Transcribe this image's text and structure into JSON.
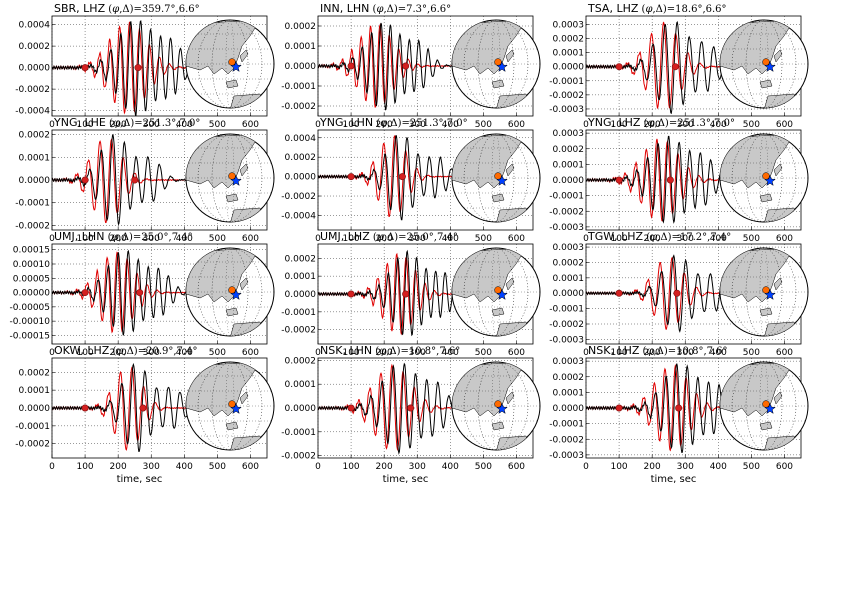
{
  "figure": {
    "x_axis_label": "time, sec",
    "colors": {
      "observed": "#000000",
      "synthetic": "#e00000",
      "marker": "#d42020",
      "station": "#ff6a00",
      "event": "#0040ff",
      "land": "#c8c8c8"
    }
  },
  "chart_data": [
    {
      "type": "line",
      "station": "SBR",
      "channel": "LHZ",
      "azimuth": "359.7°",
      "distance": "6.6°",
      "xlim": [
        0,
        650
      ],
      "xticks": [
        "0",
        "100",
        "200",
        "300",
        "400",
        "500",
        "600"
      ],
      "ylim": [
        -0.00045,
        0.00048
      ],
      "yticks": [
        "0.0004",
        "0.0002",
        "0.0000",
        "-0.0002",
        "-0.0004"
      ],
      "ytick_values": [
        0.0004,
        0.0002,
        0,
        -0.0002,
        -0.0004
      ],
      "amp": 0.00045,
      "center": 255,
      "markers": [
        100,
        260
      ]
    },
    {
      "type": "line",
      "station": "INN",
      "channel": "LHN",
      "azimuth": "7.3°",
      "distance": "6.6°",
      "xlim": [
        0,
        650
      ],
      "xticks": [
        "0",
        "100",
        "200",
        "300",
        "400",
        "500",
        "600"
      ],
      "ylim": [
        -0.00025,
        0.00025
      ],
      "yticks": [
        "0.0002",
        "0.0001",
        "0.0000",
        "-0.0001",
        "-0.0002"
      ],
      "ytick_values": [
        0.0002,
        0.0001,
        0,
        -0.0001,
        -0.0002
      ],
      "amp": 0.00022,
      "center": 200,
      "markers": [
        100,
        265
      ]
    },
    {
      "type": "line",
      "station": "TSA",
      "channel": "LHZ",
      "azimuth": "18.6°",
      "distance": "6.6°",
      "xlim": [
        0,
        650
      ],
      "xticks": [
        "0",
        "100",
        "200",
        "300",
        "400",
        "500",
        "600"
      ],
      "ylim": [
        -0.00035,
        0.00036
      ],
      "yticks": [
        "0.0003",
        "0.0002",
        "0.0001",
        "0.0000",
        "-0.0001",
        "-0.0002",
        "-0.0003"
      ],
      "ytick_values": [
        0.0003,
        0.0002,
        0.0001,
        0,
        -0.0001,
        -0.0002,
        -0.0003
      ],
      "amp": 0.00033,
      "center": 260,
      "markers": [
        100,
        270
      ]
    },
    {
      "type": "line",
      "station": "YNG",
      "channel": "LHE",
      "azimuth": "251.3°",
      "distance": "7.0°",
      "xlim": [
        0,
        650
      ],
      "xticks": [
        "0",
        "100",
        "200",
        "300",
        "400",
        "500",
        "600"
      ],
      "ylim": [
        -0.00022,
        0.00022
      ],
      "yticks": [
        "0.0002",
        "0.0001",
        "0.0000",
        "-0.0001",
        "-0.0002"
      ],
      "ytick_values": [
        0.0002,
        0.0001,
        0,
        -0.0001,
        -0.0002
      ],
      "amp": 0.0002,
      "center": 190,
      "markers": [
        100,
        250
      ]
    },
    {
      "type": "line",
      "station": "YNG",
      "channel": "LHN",
      "azimuth": "251.3°",
      "distance": "7.0°",
      "xlim": [
        0,
        650
      ],
      "xticks": [
        "0",
        "100",
        "200",
        "300",
        "400",
        "500",
        "600"
      ],
      "ylim": [
        -0.00055,
        0.00048
      ],
      "yticks": [
        "0.0004",
        "0.0002",
        "0.0000",
        "-0.0002",
        "-0.0004"
      ],
      "ytick_values": [
        0.0004,
        0.0002,
        0,
        -0.0002,
        -0.0004
      ],
      "amp": 0.00045,
      "center": 250,
      "markers": [
        100,
        255
      ]
    },
    {
      "type": "line",
      "station": "YNG",
      "channel": "LHZ",
      "azimuth": "251.3°",
      "distance": "7.0°",
      "xlim": [
        0,
        650
      ],
      "xticks": [
        "0",
        "100",
        "200",
        "300",
        "400",
        "500",
        "600"
      ],
      "ylim": [
        -0.00032,
        0.00032
      ],
      "yticks": [
        "0.0003",
        "0.0002",
        "0.0001",
        "0.0000",
        "-0.0001",
        "-0.0002",
        "-0.0003"
      ],
      "ytick_values": [
        0.0003,
        0.0002,
        0.0001,
        0,
        -0.0001,
        -0.0002,
        -0.0003
      ],
      "amp": 0.00028,
      "center": 250,
      "markers": [
        100,
        255
      ]
    },
    {
      "type": "line",
      "station": "UMJ",
      "channel": "LHN",
      "azimuth": "25.0°",
      "distance": "7.4°",
      "xlim": [
        0,
        650
      ],
      "xticks": [
        "0",
        "100",
        "200",
        "300",
        "400",
        "500",
        "600"
      ],
      "ylim": [
        -0.00018,
        0.00017
      ],
      "yticks": [
        "0.00015",
        "0.00010",
        "0.00005",
        "0.00000",
        "-0.00005",
        "-0.00010",
        "-0.00015"
      ],
      "ytick_values": [
        0.00015,
        0.0001,
        5e-05,
        0,
        -5e-05,
        -0.0001,
        -0.00015
      ],
      "amp": 0.00015,
      "center": 220,
      "markers": [
        100,
        265
      ]
    },
    {
      "type": "line",
      "station": "UMJ",
      "channel": "LHZ",
      "azimuth": "25.0°",
      "distance": "7.4°",
      "xlim": [
        0,
        650
      ],
      "xticks": [
        "0",
        "100",
        "200",
        "300",
        "400",
        "500",
        "600"
      ],
      "ylim": [
        -0.00028,
        0.00028
      ],
      "yticks": [
        "0.0002",
        "0.0001",
        "0.0000",
        "-0.0001",
        "-0.0002"
      ],
      "ytick_values": [
        0.0002,
        0.0001,
        0,
        -0.0001,
        -0.0002
      ],
      "amp": 0.00024,
      "center": 270,
      "markers": [
        100,
        265
      ]
    },
    {
      "type": "line",
      "station": "TGW",
      "channel": "LHZ",
      "azimuth": "17.2°",
      "distance": "7.4°",
      "xlim": [
        0,
        650
      ],
      "xticks": [
        "0",
        "100",
        "200",
        "300",
        "400",
        "500",
        "600"
      ],
      "ylim": [
        -0.00033,
        0.00032
      ],
      "yticks": [
        "0.0003",
        "0.0002",
        "0.0001",
        "0.0000",
        "-0.0001",
        "-0.0002",
        "-0.0003"
      ],
      "ytick_values": [
        0.0003,
        0.0002,
        0.0001,
        0,
        -0.0001,
        -0.0002,
        -0.0003
      ],
      "amp": 0.00025,
      "center": 275,
      "markers": [
        100,
        275
      ]
    },
    {
      "type": "line",
      "station": "OKW",
      "channel": "LHZ",
      "azimuth": "20.9°",
      "distance": "7.4°",
      "xlim": [
        0,
        650
      ],
      "xticks": [
        "0",
        "100",
        "200",
        "300",
        "400",
        "500",
        "600"
      ],
      "ylim": [
        -0.00028,
        0.00028
      ],
      "yticks": [
        "0.0002",
        "0.0001",
        "0.0000",
        "-0.0001",
        "-0.0002"
      ],
      "ytick_values": [
        0.0002,
        0.0001,
        0,
        -0.0001,
        -0.0002
      ],
      "amp": 0.00025,
      "center": 255,
      "markers": [
        100,
        275
      ]
    },
    {
      "type": "line",
      "station": "NSK",
      "channel": "LHN",
      "azimuth": "10.8°",
      "distance": "7.6°",
      "xlim": [
        0,
        650
      ],
      "xticks": [
        "0",
        "100",
        "200",
        "300",
        "400",
        "500",
        "600"
      ],
      "ylim": [
        -0.00021,
        0.00021
      ],
      "yticks": [
        "0.0002",
        "0.0001",
        "0.0000",
        "-0.0001",
        "-0.0002"
      ],
      "ytick_values": [
        0.0002,
        0.0001,
        0,
        -0.0001,
        -0.0002
      ],
      "amp": 0.00019,
      "center": 250,
      "markers": [
        100,
        280
      ]
    },
    {
      "type": "line",
      "station": "NSK",
      "channel": "LHZ",
      "azimuth": "10.8°",
      "distance": "7.6°",
      "xlim": [
        0,
        650
      ],
      "xticks": [
        "0",
        "100",
        "200",
        "300",
        "400",
        "500",
        "600"
      ],
      "ylim": [
        -0.00032,
        0.00032
      ],
      "yticks": [
        "0.0003",
        "0.0002",
        "0.0001",
        "0.0000",
        "-0.0001",
        "-0.0002",
        "-0.0003"
      ],
      "ytick_values": [
        0.0003,
        0.0002,
        0.0001,
        0,
        -0.0001,
        -0.0002,
        -0.0003
      ],
      "amp": 0.00029,
      "center": 285,
      "markers": [
        100,
        280
      ]
    }
  ]
}
